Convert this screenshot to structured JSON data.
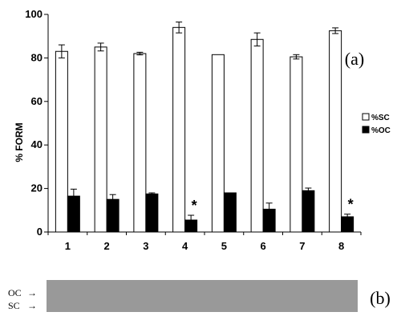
{
  "chart_data": {
    "type": "bar",
    "ylabel": "% FORM",
    "ylim": [
      0,
      100
    ],
    "yticks": [
      0,
      20,
      40,
      60,
      80,
      100
    ],
    "categories": [
      "1",
      "2",
      "3",
      "4",
      "5",
      "6",
      "7",
      "8"
    ],
    "series": [
      {
        "name": "%SC",
        "color": "#ffffff",
        "values": [
          83,
          85,
          82,
          94,
          81.5,
          88.5,
          80.5,
          92.5
        ],
        "errors": [
          3,
          1.8,
          0.6,
          2.5,
          0,
          3,
          1,
          1.3
        ]
      },
      {
        "name": "%OC",
        "color": "#000000",
        "values": [
          16.5,
          15,
          17.5,
          5.5,
          18,
          10.5,
          19,
          7
        ],
        "errors": [
          3.2,
          2.2,
          0.5,
          2.2,
          0,
          2.8,
          1.2,
          1.2
        ]
      }
    ],
    "significance_marks": [
      {
        "category": "4",
        "series": "%OC",
        "symbol": "*"
      },
      {
        "category": "8",
        "series": "%OC",
        "symbol": "*"
      }
    ],
    "legend_position": "right",
    "grid": false
  },
  "panel_labels": {
    "chart": "(a)",
    "gel": "(b)"
  },
  "gel": {
    "labels": [
      "OC",
      "SC"
    ],
    "color": "#999999"
  }
}
